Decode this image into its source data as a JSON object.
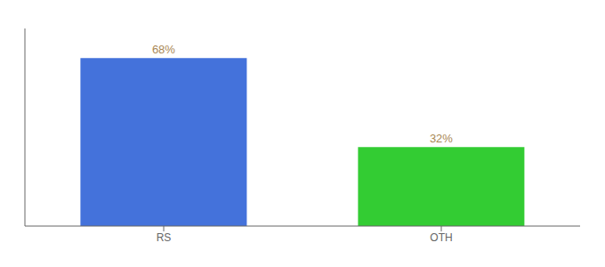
{
  "chart_data": {
    "type": "bar",
    "categories": [
      "RS",
      "OTH"
    ],
    "values": [
      68,
      32
    ],
    "colors": [
      "#4472db",
      "#33cc33"
    ],
    "ylim": [
      0,
      80
    ],
    "data_labels": true,
    "value_labels": [
      "68%",
      "32%"
    ],
    "tick_labels": "x",
    "grid": false
  }
}
